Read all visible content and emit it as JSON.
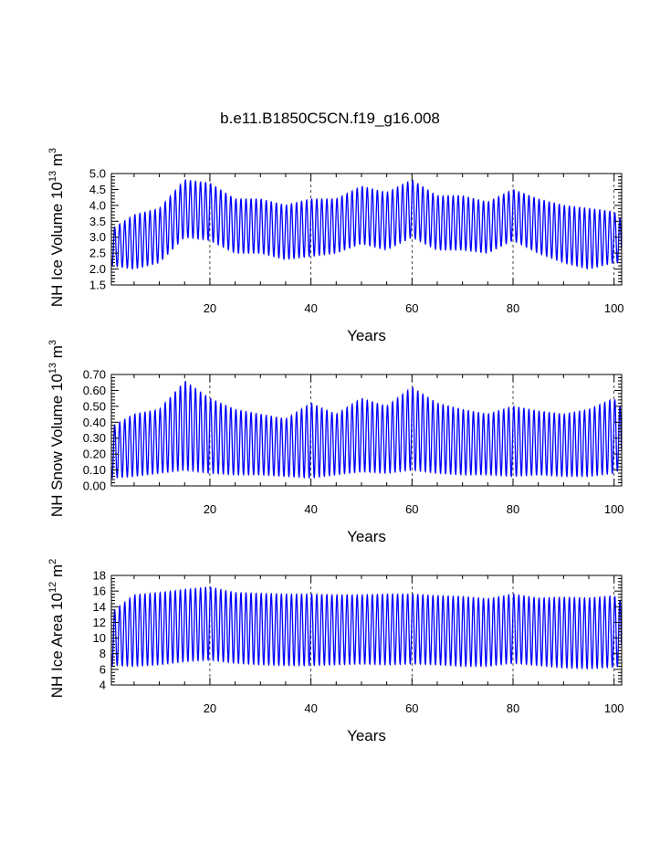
{
  "title": "b.e11.B1850C5CN.f19_g16.008",
  "chart_data": [
    {
      "type": "line",
      "ylabel": "NH Ice Volume",
      "ylabel_unit_base": "10",
      "ylabel_unit_exp": "13",
      "ylabel_unit_tail": " m",
      "ylabel_unit_tail_exp": "3",
      "xlabel": "Years",
      "xlim": [
        0.5,
        101.5
      ],
      "ylim": [
        1.5,
        5.0
      ],
      "x_ticks": [
        20,
        40,
        60,
        80,
        100
      ],
      "x_tick_labels": [
        "20",
        "40",
        "60",
        "80",
        "100"
      ],
      "y_ticks": [
        1.5,
        2.0,
        2.5,
        3.0,
        3.5,
        4.0,
        4.5,
        5.0
      ],
      "y_tick_labels": [
        "1.5",
        "2.0",
        "2.5",
        "3.0",
        "3.5",
        "4.0",
        "4.5",
        "5.0"
      ],
      "grid_x": [
        20,
        40,
        60,
        80,
        100
      ],
      "series_color": "#0000ff",
      "years": [
        1,
        5,
        10,
        15,
        20,
        25,
        30,
        35,
        40,
        45,
        50,
        55,
        60,
        65,
        70,
        75,
        80,
        85,
        90,
        95,
        100,
        101
      ],
      "annual_max": [
        3.3,
        3.7,
        3.9,
        4.8,
        4.7,
        4.2,
        4.2,
        4.0,
        4.2,
        4.2,
        4.6,
        4.4,
        4.8,
        4.3,
        4.3,
        4.1,
        4.5,
        4.2,
        4.0,
        3.9,
        3.8,
        3.6
      ],
      "annual_min": [
        2.1,
        2.0,
        2.2,
        3.0,
        2.9,
        2.5,
        2.5,
        2.3,
        2.4,
        2.5,
        2.8,
        2.6,
        3.0,
        2.6,
        2.6,
        2.5,
        2.9,
        2.5,
        2.2,
        2.0,
        2.2,
        2.2
      ]
    },
    {
      "type": "line",
      "ylabel": "NH Snow Volume",
      "ylabel_unit_base": "10",
      "ylabel_unit_exp": "13",
      "ylabel_unit_tail": " m",
      "ylabel_unit_tail_exp": "3",
      "xlabel": "Years",
      "xlim": [
        0.5,
        101.5
      ],
      "ylim": [
        0.0,
        0.7
      ],
      "x_ticks": [
        20,
        40,
        60,
        80,
        100
      ],
      "x_tick_labels": [
        "20",
        "40",
        "60",
        "80",
        "100"
      ],
      "y_ticks": [
        0.0,
        0.1,
        0.2,
        0.3,
        0.4,
        0.5,
        0.6,
        0.7
      ],
      "y_tick_labels": [
        "0.00",
        "0.10",
        "0.20",
        "0.30",
        "0.40",
        "0.50",
        "0.60",
        "0.70"
      ],
      "grid_x": [
        20,
        40,
        60,
        80,
        100
      ],
      "series_color": "#0000ff",
      "years": [
        1,
        5,
        10,
        15,
        20,
        25,
        30,
        35,
        40,
        45,
        50,
        55,
        60,
        65,
        70,
        75,
        80,
        85,
        90,
        95,
        100,
        101
      ],
      "annual_max": [
        0.38,
        0.45,
        0.48,
        0.66,
        0.55,
        0.48,
        0.45,
        0.42,
        0.52,
        0.45,
        0.55,
        0.5,
        0.62,
        0.52,
        0.48,
        0.45,
        0.5,
        0.47,
        0.45,
        0.48,
        0.55,
        0.5
      ],
      "annual_min": [
        0.05,
        0.06,
        0.08,
        0.1,
        0.08,
        0.07,
        0.07,
        0.06,
        0.05,
        0.07,
        0.09,
        0.08,
        0.1,
        0.08,
        0.07,
        0.07,
        0.06,
        0.07,
        0.06,
        0.06,
        0.08,
        0.1
      ]
    },
    {
      "type": "line",
      "ylabel": "NH Ice Area",
      "ylabel_unit_base": "10",
      "ylabel_unit_exp": "12",
      "ylabel_unit_tail": " m",
      "ylabel_unit_tail_exp": "2",
      "xlabel": "Years",
      "xlim": [
        0.5,
        101.5
      ],
      "ylim": [
        4,
        18
      ],
      "x_ticks": [
        20,
        40,
        60,
        80,
        100
      ],
      "x_tick_labels": [
        "20",
        "40",
        "60",
        "80",
        "100"
      ],
      "y_ticks": [
        4,
        6,
        8,
        10,
        12,
        14,
        16,
        18
      ],
      "y_tick_labels": [
        "4",
        "6",
        "8",
        "10",
        "12",
        "14",
        "16",
        "18"
      ],
      "grid_x": [
        20,
        40,
        60,
        80,
        100
      ],
      "series_color": "#0000ff",
      "years": [
        1,
        5,
        10,
        15,
        20,
        25,
        30,
        35,
        40,
        45,
        50,
        55,
        60,
        65,
        70,
        75,
        80,
        85,
        90,
        95,
        100,
        101
      ],
      "annual_max": [
        13.5,
        15.5,
        15.8,
        16.2,
        16.5,
        15.8,
        15.7,
        15.6,
        15.6,
        15.5,
        15.5,
        15.6,
        15.6,
        15.4,
        15.3,
        15.0,
        15.6,
        15.1,
        15.2,
        15.1,
        15.4,
        14.8
      ],
      "annual_min": [
        6.5,
        6.4,
        6.6,
        7.0,
        7.2,
        6.8,
        6.6,
        6.5,
        6.5,
        6.6,
        6.7,
        6.6,
        6.7,
        6.6,
        6.4,
        6.4,
        6.8,
        6.5,
        6.2,
        6.1,
        6.3,
        6.4
      ]
    }
  ]
}
